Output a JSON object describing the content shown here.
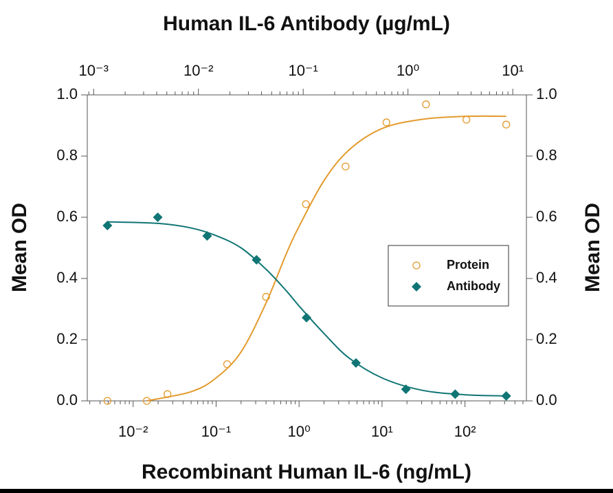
{
  "chart_data": {
    "type": "scatter",
    "x2label": "Human IL-6 Antibody (µg/mL)",
    "xlabel": "Recombinant Human IL-6 (ng/mL)",
    "ylabel": "Mean OD",
    "y2label": "Mean OD",
    "xlog": true,
    "xlim": [
      0.0028,
      550
    ],
    "xticks": [
      {
        "value": 0.01,
        "label": "10⁻²"
      },
      {
        "value": 0.1,
        "label": "10⁻¹"
      },
      {
        "value": 1,
        "label": "10⁰"
      },
      {
        "value": 10,
        "label": "10¹"
      },
      {
        "value": 100,
        "label": "10²"
      }
    ],
    "x2lim": [
      0.00087,
      13.5
    ],
    "x2ticks": [
      {
        "value": 0.001,
        "label": "10⁻³"
      },
      {
        "value": 0.01,
        "label": "10⁻²"
      },
      {
        "value": 0.1,
        "label": "10⁻¹"
      },
      {
        "value": 1,
        "label": "10⁰"
      },
      {
        "value": 10,
        "label": "10¹"
      }
    ],
    "ylim": [
      0,
      1
    ],
    "yticks": [
      {
        "value": 0,
        "label": "0.0"
      },
      0.2,
      0.4,
      0.6,
      0.8,
      {
        "value": 1,
        "label": "1.0"
      }
    ],
    "y2lim": [
      0,
      1
    ],
    "y2ticks": [
      {
        "value": 0,
        "label": "0.0"
      },
      0.2,
      0.4,
      0.6,
      0.8,
      {
        "value": 1,
        "label": "1.0"
      }
    ],
    "legend": "right",
    "series": [
      {
        "name": "Protein",
        "color": "#e39a2c",
        "marker": "open-circle",
        "x": [
          0.0049,
          0.0146,
          0.0259,
          0.136,
          0.4,
          1.21,
          3.64,
          11.3,
          33.9,
          104,
          314
        ],
        "values": [
          0.0,
          0.0,
          0.022,
          0.12,
          0.34,
          0.643,
          0.766,
          0.91,
          0.969,
          0.919,
          0.903
        ],
        "fit": {
          "x": [
            0.0146,
            0.05,
            0.1,
            0.2,
            0.4,
            0.7,
            1,
            2,
            4,
            10,
            30,
            100,
            314
          ],
          "values": [
            0.0,
            0.03,
            0.075,
            0.16,
            0.32,
            0.48,
            0.57,
            0.72,
            0.82,
            0.89,
            0.92,
            0.93,
            0.93
          ]
        }
      },
      {
        "name": "Antibody",
        "color": "#107575",
        "marker": "diamond",
        "x": [
          0.0049,
          0.0198,
          0.078,
          0.307,
          1.23,
          4.85,
          19.4,
          76.2,
          314
        ],
        "values": [
          0.573,
          0.6,
          0.539,
          0.461,
          0.272,
          0.124,
          0.038,
          0.022,
          0.016
        ],
        "fit": {
          "x": [
            0.0049,
            0.02,
            0.05,
            0.1,
            0.2,
            0.4,
            0.7,
            1,
            2,
            4,
            10,
            30,
            100,
            314
          ],
          "values": [
            0.585,
            0.58,
            0.565,
            0.54,
            0.5,
            0.43,
            0.36,
            0.31,
            0.22,
            0.14,
            0.075,
            0.035,
            0.02,
            0.016
          ]
        }
      }
    ]
  }
}
